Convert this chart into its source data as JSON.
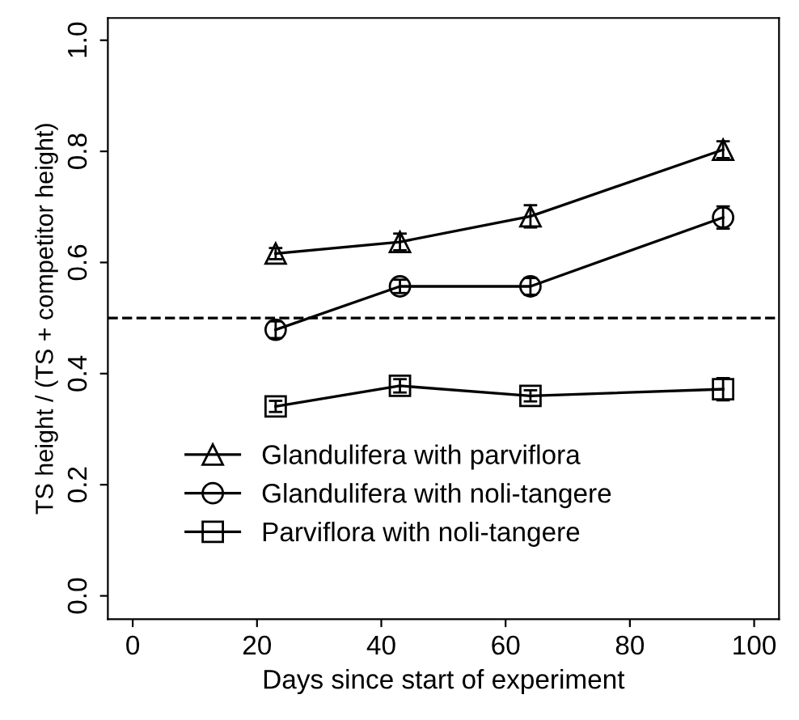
{
  "chart_data": {
    "type": "line",
    "xlabel": "Days since start of experiment",
    "ylabel": "TS height / (TS + competitor height)",
    "x": [
      23,
      43,
      64,
      95
    ],
    "series": [
      {
        "name": "Glandulifera with parviflora",
        "color": "#000000",
        "marker": "triangle",
        "values": [
          0.616,
          0.637,
          0.683,
          0.803
        ],
        "errors": [
          0.01,
          0.015,
          0.02,
          0.015
        ]
      },
      {
        "name": "Glandulifera with noli-tangere",
        "color": "#000000",
        "marker": "circle",
        "values": [
          0.479,
          0.557,
          0.557,
          0.681
        ],
        "errors": [
          0.015,
          0.012,
          0.015,
          0.02
        ]
      },
      {
        "name": "Parviflora with noli-tangere",
        "color": "#000000",
        "marker": "square",
        "values": [
          0.341,
          0.378,
          0.36,
          0.372
        ],
        "errors": [
          0.01,
          0.012,
          0.01,
          0.02
        ]
      }
    ],
    "xlim": [
      -4,
      104
    ],
    "xticks": [
      0,
      20,
      40,
      60,
      80,
      100
    ],
    "ylim": [
      -0.042,
      1.04
    ],
    "yticks": [
      {
        "value": 0,
        "label": "0.0"
      },
      0.2,
      0.4,
      0.6,
      0.8,
      {
        "value": 1,
        "label": "1.0"
      }
    ],
    "ref_lines": [
      {
        "axis": "y",
        "value": 0.5,
        "line_style": "dashed",
        "color": "#000000"
      }
    ],
    "legend": "bottom left",
    "grid": false,
    "line_style": "solid"
  }
}
